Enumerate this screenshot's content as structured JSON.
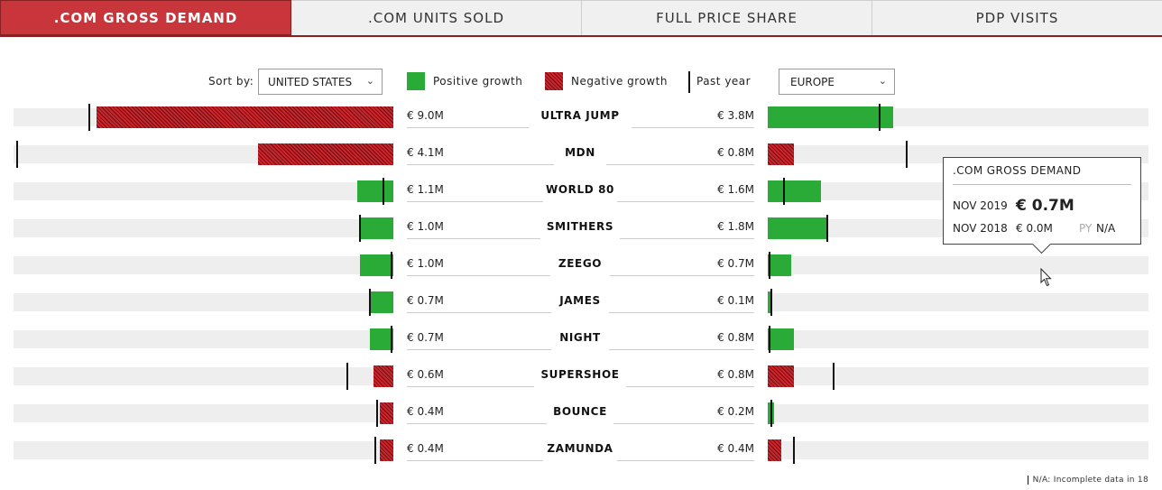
{
  "tabs": [
    {
      "label": ".COM GROSS DEMAND",
      "active": true
    },
    {
      "label": ".COM UNITS SOLD",
      "active": false
    },
    {
      "label": "FULL PRICE SHARE",
      "active": false
    },
    {
      "label": "PDP VISITS",
      "active": false
    }
  ],
  "controls": {
    "sort_label": "Sort by:",
    "left_select": "UNITED STATES",
    "right_select": "EUROPE",
    "legend": {
      "positive": "Positive growth",
      "negative": "Negative growth",
      "past_year": "Past year"
    }
  },
  "colors": {
    "positive": "#2aab38",
    "negative": "#c8262c",
    "track": "#eeeeee",
    "accent": "#c8363c"
  },
  "chart_data": {
    "type": "bar",
    "unit": "€ M",
    "categories": [
      "ULTRA JUMP",
      "MDN",
      "WORLD 80",
      "SMITHERS",
      "ZEEGO",
      "JAMES",
      "NIGHT",
      "SUPERSHOE",
      "BOUNCE",
      "ZAMUNDA"
    ],
    "series": [
      {
        "name": "UNITED STATES",
        "values": [
          9.0,
          4.1,
          1.1,
          1.0,
          1.0,
          0.7,
          0.7,
          0.6,
          0.4,
          0.4
        ],
        "labels": [
          "€ 9.0M",
          "€ 4.1M",
          "€ 1.1M",
          "€ 1.0M",
          "€ 1.0M",
          "€ 0.7M",
          "€ 0.7M",
          "€ 0.6M",
          "€ 0.4M",
          "€ 0.4M"
        ],
        "bar_values": [
          9.0,
          4.1,
          1.1,
          1.0,
          1.0,
          0.7,
          0.7,
          0.6,
          0.4,
          0.4
        ],
        "growth": [
          "negative",
          "negative",
          "positive",
          "positive",
          "positive",
          "positive",
          "positive",
          "negative",
          "negative",
          "negative"
        ],
        "past_year": [
          9.2,
          11.4,
          0.3,
          1.0,
          0.05,
          0.7,
          0.05,
          1.4,
          0.5,
          0.55
        ]
      },
      {
        "name": "EUROPE",
        "values": [
          3.8,
          0.8,
          1.6,
          1.8,
          0.7,
          0.1,
          0.8,
          0.8,
          0.2,
          0.4
        ],
        "labels": [
          "€ 3.8M",
          "€ 0.8M",
          "€ 1.6M",
          "€ 1.8M",
          "€ 0.7M",
          "€ 0.1M",
          "€ 0.8M",
          "€ 0.8M",
          "€ 0.2M",
          "€ 0.4M"
        ],
        "bar_values": [
          3.8,
          0.8,
          1.6,
          1.8,
          0.7,
          0.1,
          0.8,
          0.8,
          0.2,
          0.4
        ],
        "growth": [
          "positive",
          "negative",
          "positive",
          "positive",
          "positive",
          "positive",
          "positive",
          "negative",
          "positive",
          "negative"
        ],
        "past_year": [
          3.4,
          4.2,
          0.5,
          1.8,
          0.05,
          0.1,
          0.05,
          2.0,
          0.1,
          0.8
        ]
      }
    ],
    "xlim": [
      0,
      11.5
    ],
    "legend": "top"
  },
  "tooltip": {
    "title": ".COM GROSS DEMAND",
    "current_label": "NOV 2019",
    "current_value": "€ 0.7M",
    "previous_label": "NOV 2018",
    "previous_value": "€ 0.0M",
    "py_label": "PY",
    "py_value": "N/A"
  },
  "footnote": "N/A: Incomplete data in 18"
}
